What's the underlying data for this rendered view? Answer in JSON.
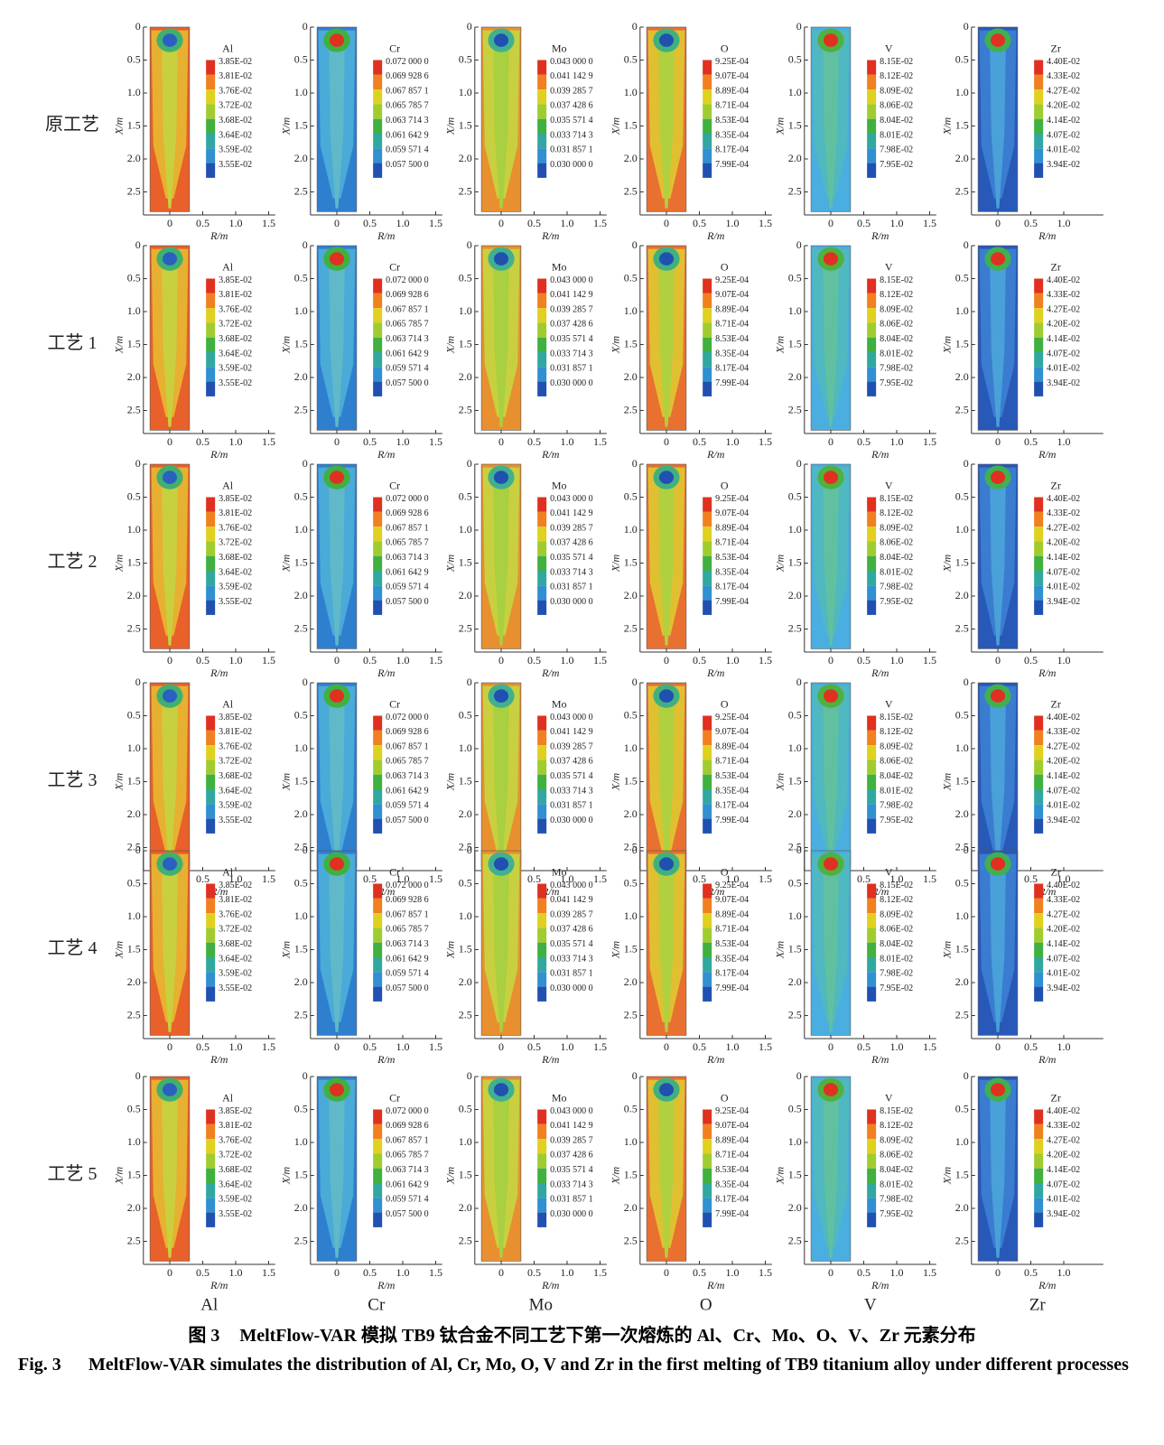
{
  "row_labels": [
    "原工艺",
    "工艺 1",
    "工艺 2",
    "工艺 3",
    "工艺 4",
    "工艺 5"
  ],
  "y_ticks": [
    "0",
    "0.5",
    "1.0",
    "1.5",
    "2.0",
    "2.5"
  ],
  "x_axis_label": "R/m",
  "y_axis_label": "X/m",
  "legend_colors": [
    "#e03020",
    "#f08020",
    "#e0d020",
    "#a0cc30",
    "#40b040",
    "#30a8a0",
    "#3090d0",
    "#2050b0"
  ],
  "columns": [
    {
      "name": "Al",
      "x_ticks": [
        "0",
        "0.5",
        "1.0",
        "1.5"
      ],
      "legend": [
        "3.85E-02",
        "3.81E-02",
        "3.76E-02",
        "3.72E-02",
        "3.68E-02",
        "3.64E-02",
        "3.59E-02",
        "3.55E-02"
      ],
      "fill": {
        "outer": "#e8602a",
        "body": "#e8b030",
        "core": "#c8d040",
        "ring": "#40b070",
        "pool": "#2a60c0"
      }
    },
    {
      "name": "Cr",
      "x_ticks": [
        "0",
        "0.5",
        "1.0",
        "1.5"
      ],
      "legend": [
        "0.072 000 0",
        "0.069 928 6",
        "0.067 857 1",
        "0.065 785 7",
        "0.063 714 3",
        "0.061 642 9",
        "0.059 571 4",
        "0.057 500 0"
      ],
      "fill": {
        "outer": "#2f7fcf",
        "body": "#4aaad8",
        "core": "#60b8c8",
        "ring": "#40b040",
        "pool": "#e03020"
      }
    },
    {
      "name": "Mo",
      "x_ticks": [
        "0",
        "0.5",
        "1.0",
        "1.5"
      ],
      "legend": [
        "0.043 000 0",
        "0.041 142 9",
        "0.039 285 7",
        "0.037 428 6",
        "0.035 571 4",
        "0.033 714 3",
        "0.031 857 1",
        "0.030 000 0"
      ],
      "fill": {
        "outer": "#e89030",
        "body": "#c8d040",
        "core": "#a8d040",
        "ring": "#40b090",
        "pool": "#2050b0"
      }
    },
    {
      "name": "O",
      "x_ticks": [
        "0",
        "0.5",
        "1.0",
        "1.5"
      ],
      "legend": [
        "9.25E-04",
        "9.07E-04",
        "8.89E-04",
        "8.71E-04",
        "8.53E-04",
        "8.35E-04",
        "8.17E-04",
        "7.99E-04"
      ],
      "fill": {
        "outer": "#e87030",
        "body": "#e0c030",
        "core": "#b0d040",
        "ring": "#40b080",
        "pool": "#2050b0"
      }
    },
    {
      "name": "V",
      "x_ticks": [
        "0",
        "0.5",
        "1.0",
        "1.5"
      ],
      "legend": [
        "8.15E-02",
        "8.12E-02",
        "8.09E-02",
        "8.06E-02",
        "8.04E-02",
        "8.01E-02",
        "7.98E-02",
        "7.95E-02"
      ],
      "fill": {
        "outer": "#4aaee0",
        "body": "#50b8c0",
        "core": "#60c0a0",
        "ring": "#50b040",
        "pool": "#e03020"
      }
    },
    {
      "name": "Zr",
      "x_ticks": [
        "0",
        "0.5",
        "1.0"
      ],
      "legend": [
        "4.40E-02",
        "4.33E-02",
        "4.27E-02",
        "4.20E-02",
        "4.14E-02",
        "4.07E-02",
        "4.01E-02",
        "3.94E-02"
      ],
      "fill": {
        "outer": "#2858b8",
        "body": "#3a7cd0",
        "core": "#4aa0d8",
        "ring": "#40b050",
        "pool": "#e03020"
      }
    }
  ],
  "caption": {
    "zh_label": "图 3",
    "zh": "MeltFlow-VAR 模拟 TB9 钛合金不同工艺下第一次熔炼的 Al、Cr、Mo、O、V、Zr 元素分布",
    "en_label": "Fig. 3",
    "en": "MeltFlow-VAR simulates the distribution of Al, Cr, Mo, O, V and Zr in the first melting of TB9 titanium alloy under different processes"
  }
}
